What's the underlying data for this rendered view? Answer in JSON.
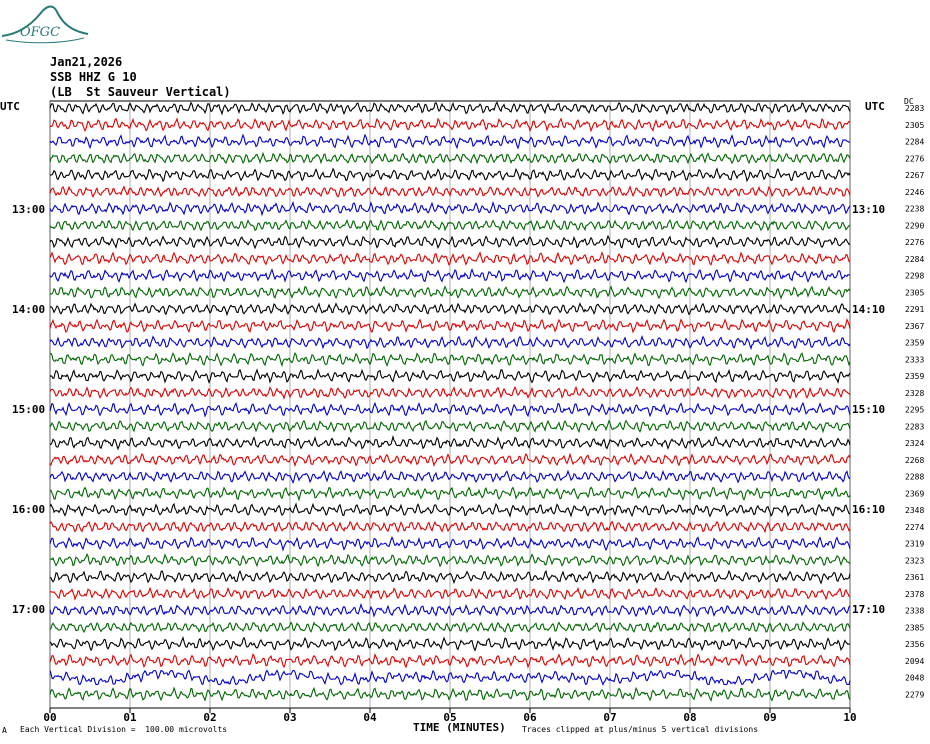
{
  "logo": {
    "text": "OFGC",
    "color": "#2a7a7a"
  },
  "header": {
    "date": "Jan21,2026",
    "station": "SSB HHZ G 10",
    "location": "(LB  St Sauveur Vertical)"
  },
  "left_axis": {
    "label": "UTC",
    "ticks": [
      "13:00",
      "14:00",
      "15:00",
      "16:00",
      "17:00"
    ]
  },
  "right_axis": {
    "label": "UTC",
    "ticks": [
      "13:10",
      "14:10",
      "15:10",
      "16:10",
      "17:10"
    ]
  },
  "dc_label": "DC",
  "footer": {
    "scale_note": "Each Vertical Division =  100.00 microvolts",
    "clip_note": "Traces clipped at plus/minus 5 vertical divisions",
    "corner_mark": "A"
  },
  "colors": {
    "black": "#000000",
    "red": "#dd0000",
    "blue": "#0000cc",
    "green": "#006600"
  },
  "chart_data": {
    "type": "line",
    "xlabel": "TIME (MINUTES)",
    "xticks": [
      "00",
      "01",
      "02",
      "03",
      "04",
      "05",
      "06",
      "07",
      "08",
      "09",
      "10"
    ],
    "xlim": [
      0,
      10
    ],
    "trace_colors": [
      "black",
      "red",
      "blue",
      "green"
    ],
    "dc_offsets": [
      2283,
      2305,
      2284,
      2276,
      2267,
      2246,
      2238,
      2290,
      2276,
      2284,
      2298,
      2305,
      2291,
      2367,
      2359,
      2333,
      2359,
      2328,
      2295,
      2283,
      2324,
      2268,
      2288,
      2369,
      2348,
      2274,
      2319,
      2323,
      2361,
      2378,
      2338,
      2385,
      2356,
      2094,
      2048,
      2279
    ]
  }
}
